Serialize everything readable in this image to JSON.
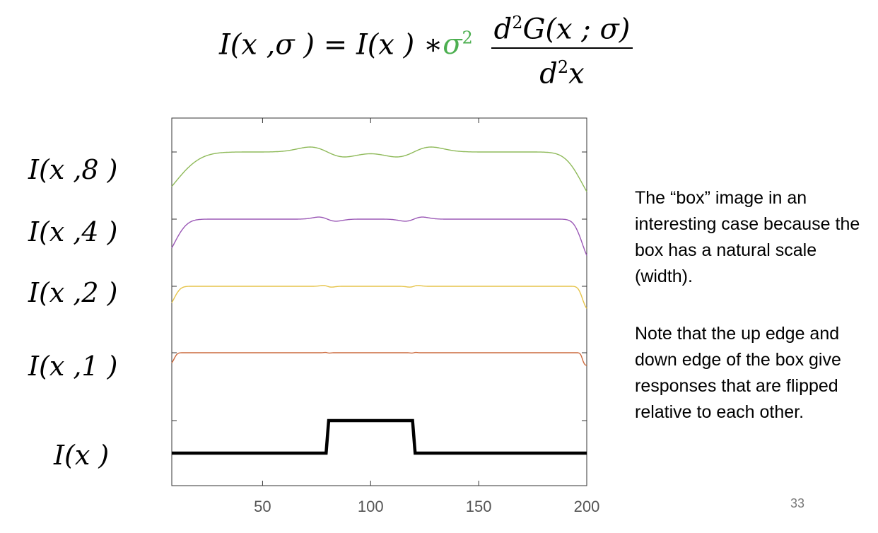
{
  "equation": {
    "lhs": "I(x ,σ )",
    "equals": "=",
    "rhs_image": "I(x )",
    "convolve": "∗",
    "sigma": "σ",
    "sigma_exp": "2",
    "numerator_d": "d",
    "numerator_exp": "2",
    "numerator_G": "G(x ; σ)",
    "denominator_d": "d",
    "denominator_exp": "2",
    "denominator_x": "x"
  },
  "row_labels": [
    "I(x ,8 )",
    "I(x ,4 )",
    "I(x ,2 )",
    "I(x ,1 )",
    "I(x )"
  ],
  "notes": [
    "The “box” image in an interesting case because the box has a natural scale (width).",
    "Note that the up edge and down edge of the box give responses that are flipped relative to each other."
  ],
  "page_number": "33",
  "colors": {
    "sigma8": "#8fba5a",
    "sigma4": "#9b59b6",
    "sigma2": "#e6c44a",
    "sigma1": "#cc6a3d",
    "box": "#000000",
    "equation_sigma": "#4caf50"
  },
  "chart_data": {
    "type": "line",
    "x_ticks": [
      50,
      100,
      150,
      200
    ],
    "xlim": [
      8,
      200
    ],
    "box": {
      "x_start": 80,
      "x_end": 120
    },
    "series": [
      {
        "sigma": 8,
        "values_plateau": 1
      },
      {
        "sigma": 4,
        "values_plateau": 1
      },
      {
        "sigma": 2,
        "values_plateau": 1
      },
      {
        "sigma": 1,
        "values_plateau": 1
      },
      {
        "sigma": 0,
        "values_plateau": 1
      }
    ]
  }
}
